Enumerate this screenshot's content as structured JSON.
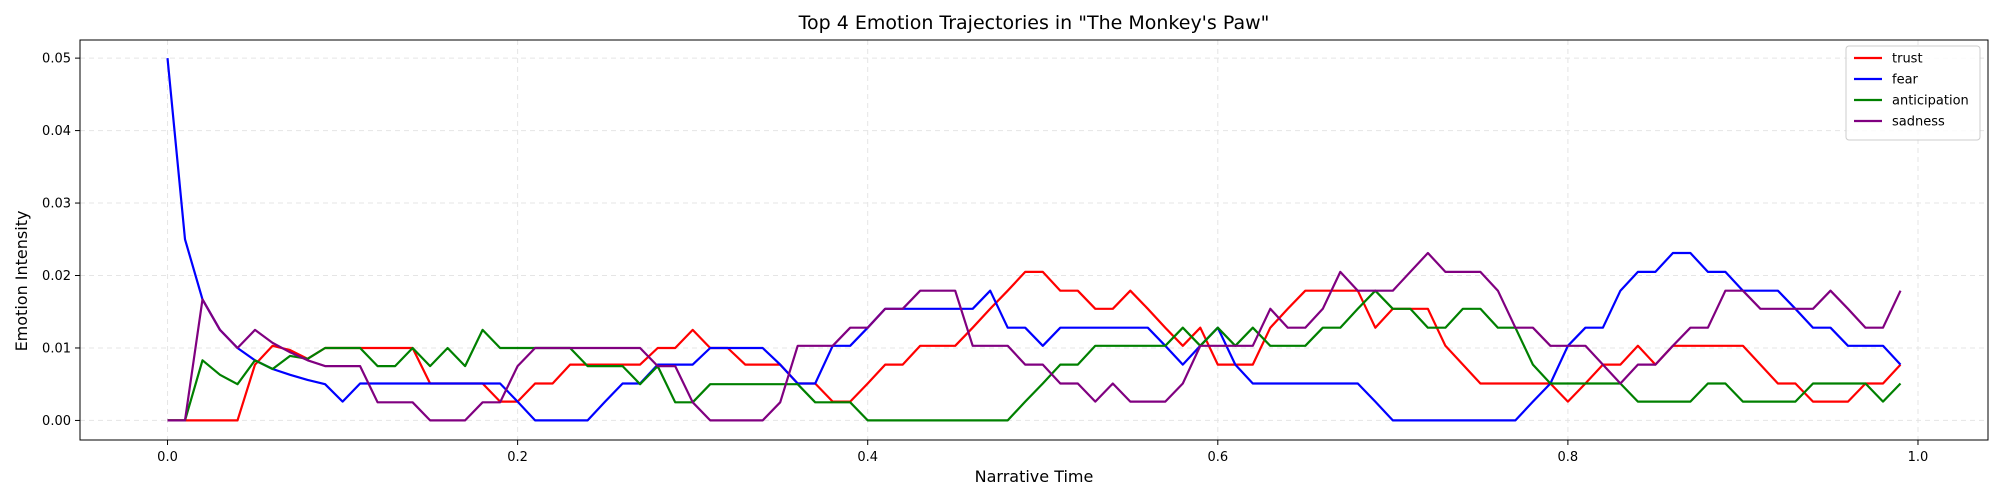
{
  "chart_data": {
    "type": "line",
    "title": "Top 4 Emotion Trajectories in \"The Monkey's Paw\"",
    "xlabel": "Narrative Time",
    "ylabel": "Emotion Intensity",
    "xlim": [
      -0.05,
      1.04
    ],
    "ylim": [
      -0.0027,
      0.0525
    ],
    "xticks": [
      0.0,
      0.2,
      0.4,
      0.6,
      0.8,
      1.0
    ],
    "xtick_labels": [
      "0.0",
      "0.2",
      "0.4",
      "0.6",
      "0.8",
      "1.0"
    ],
    "yticks": [
      0.0,
      0.01,
      0.02,
      0.03,
      0.04,
      0.05
    ],
    "ytick_labels": [
      "0.00",
      "0.01",
      "0.02",
      "0.03",
      "0.04",
      "0.05"
    ],
    "grid": true,
    "legend_position": "top-right",
    "x": [
      0.0,
      0.01,
      0.02,
      0.03,
      0.04,
      0.05,
      0.06,
      0.07,
      0.08,
      0.09,
      0.1,
      0.11,
      0.12,
      0.13,
      0.14,
      0.15,
      0.16,
      0.17,
      0.18,
      0.19,
      0.2,
      0.21,
      0.22,
      0.23,
      0.24,
      0.25,
      0.26,
      0.27,
      0.28,
      0.29,
      0.3,
      0.31,
      0.32,
      0.33,
      0.34,
      0.35,
      0.36,
      0.37,
      0.38,
      0.39,
      0.4,
      0.41,
      0.42,
      0.43,
      0.44,
      0.45,
      0.46,
      0.47,
      0.48,
      0.49,
      0.5,
      0.51,
      0.52,
      0.53,
      0.54,
      0.55,
      0.56,
      0.57,
      0.58,
      0.59,
      0.6,
      0.61,
      0.62,
      0.63,
      0.64,
      0.65,
      0.66,
      0.67,
      0.68,
      0.69,
      0.7,
      0.71,
      0.72,
      0.73,
      0.74,
      0.75,
      0.76,
      0.77,
      0.78,
      0.79,
      0.8,
      0.81,
      0.82,
      0.83,
      0.84,
      0.85,
      0.86,
      0.87,
      0.88,
      0.89,
      0.9,
      0.91,
      0.92,
      0.93,
      0.94,
      0.95,
      0.96,
      0.97,
      0.98,
      0.99
    ],
    "series": [
      {
        "name": "trust",
        "color": "#ff0000",
        "values": [
          0,
          0,
          0,
          0,
          0,
          0.0077,
          0.0103,
          0.0097,
          0.0085,
          0.01,
          0.01,
          0.01,
          0.01,
          0.01,
          0.01,
          0.0051,
          0.0051,
          0.0051,
          0.0051,
          0.0026,
          0.0026,
          0.0051,
          0.0051,
          0.0077,
          0.0077,
          0.0077,
          0.0077,
          0.0077,
          0.01,
          0.01,
          0.0125,
          0.01,
          0.01,
          0.0077,
          0.0077,
          0.0077,
          0.0051,
          0.0051,
          0.0026,
          0.0026,
          0.0051,
          0.0077,
          0.0077,
          0.0103,
          0.0103,
          0.0103,
          0.0128,
          0.0154,
          0.0179,
          0.0205,
          0.0205,
          0.0179,
          0.0179,
          0.0154,
          0.0154,
          0.0179,
          0.0154,
          0.0128,
          0.0103,
          0.0128,
          0.0077,
          0.0077,
          0.0077,
          0.0128,
          0.0154,
          0.0179,
          0.0179,
          0.0179,
          0.0179,
          0.0128,
          0.0154,
          0.0154,
          0.0154,
          0.0103,
          0.0077,
          0.0051,
          0.0051,
          0.0051,
          0.0051,
          0.0051,
          0.0026,
          0.0051,
          0.0077,
          0.0077,
          0.0103,
          0.0077,
          0.0103,
          0.0103,
          0.0103,
          0.0103,
          0.0103,
          0.0077,
          0.0051,
          0.0051,
          0.0026,
          0.0026,
          0.0026,
          0.0051,
          0.0051,
          0.0077
        ]
      },
      {
        "name": "fear",
        "color": "#0000ff",
        "values": [
          0.05,
          0.025,
          0.0167,
          0.0125,
          0.01,
          0.0083,
          0.0071,
          0.0063,
          0.0056,
          0.005,
          0.0026,
          0.0051,
          0.0051,
          0.0051,
          0.0051,
          0.0051,
          0.0051,
          0.0051,
          0.0051,
          0.0051,
          0.0026,
          0,
          0,
          0,
          0,
          0.0026,
          0.0051,
          0.0051,
          0.0077,
          0.0077,
          0.0077,
          0.01,
          0.01,
          0.01,
          0.01,
          0.0077,
          0.0051,
          0.0051,
          0.0103,
          0.0103,
          0.0128,
          0.0154,
          0.0154,
          0.0154,
          0.0154,
          0.0154,
          0.0154,
          0.0179,
          0.0128,
          0.0128,
          0.0103,
          0.0128,
          0.0128,
          0.0128,
          0.0128,
          0.0128,
          0.0128,
          0.0103,
          0.0077,
          0.0103,
          0.0128,
          0.0077,
          0.0051,
          0.0051,
          0.0051,
          0.0051,
          0.0051,
          0.0051,
          0.0051,
          0.0026,
          0,
          0,
          0,
          0,
          0,
          0,
          0,
          0,
          0.0026,
          0.0051,
          0.0103,
          0.0128,
          0.0128,
          0.0179,
          0.0205,
          0.0205,
          0.0231,
          0.0231,
          0.0205,
          0.0205,
          0.0179,
          0.0179,
          0.0179,
          0.0154,
          0.0128,
          0.0128,
          0.0103,
          0.0103,
          0.0103,
          0.0077
        ]
      },
      {
        "name": "anticipation",
        "color": "#008000",
        "values": [
          0,
          0,
          0.0083,
          0.0063,
          0.005,
          0.0083,
          0.0071,
          0.0089,
          0.0085,
          0.01,
          0.01,
          0.01,
          0.0075,
          0.0075,
          0.01,
          0.0075,
          0.01,
          0.0075,
          0.0125,
          0.01,
          0.01,
          0.01,
          0.01,
          0.01,
          0.0075,
          0.0075,
          0.0075,
          0.005,
          0.0075,
          0.0025,
          0.0025,
          0.005,
          0.005,
          0.005,
          0.005,
          0.005,
          0.005,
          0.0025,
          0.0025,
          0.0025,
          0,
          0,
          0,
          0,
          0,
          0,
          0,
          0,
          0,
          0.0026,
          0.0051,
          0.0077,
          0.0077,
          0.0103,
          0.0103,
          0.0103,
          0.0103,
          0.0103,
          0.0128,
          0.0103,
          0.0128,
          0.0103,
          0.0128,
          0.0103,
          0.0103,
          0.0103,
          0.0128,
          0.0128,
          0.0154,
          0.0179,
          0.0154,
          0.0154,
          0.0128,
          0.0128,
          0.0154,
          0.0154,
          0.0128,
          0.0128,
          0.0077,
          0.0051,
          0.0051,
          0.0051,
          0.0051,
          0.0051,
          0.0026,
          0.0026,
          0.0026,
          0.0026,
          0.0051,
          0.0051,
          0.0026,
          0.0026,
          0.0026,
          0.0026,
          0.0051,
          0.0051,
          0.0051,
          0.0051,
          0.0026,
          0.0051
        ]
      },
      {
        "name": "sadness",
        "color": "#800080",
        "values": [
          0,
          0,
          0.0167,
          0.0125,
          0.01,
          0.0125,
          0.0107,
          0.0094,
          0.0083,
          0.0075,
          0.0075,
          0.0075,
          0.0025,
          0.0025,
          0.0025,
          0,
          0,
          0,
          0.0025,
          0.0025,
          0.0075,
          0.01,
          0.01,
          0.01,
          0.01,
          0.01,
          0.01,
          0.01,
          0.0075,
          0.0075,
          0.0025,
          0,
          0,
          0,
          0,
          0.0025,
          0.0103,
          0.0103,
          0.0103,
          0.0128,
          0.0128,
          0.0154,
          0.0154,
          0.0179,
          0.0179,
          0.0179,
          0.0103,
          0.0103,
          0.0103,
          0.0077,
          0.0077,
          0.0051,
          0.0051,
          0.0026,
          0.0051,
          0.0026,
          0.0026,
          0.0026,
          0.0051,
          0.0103,
          0.0103,
          0.0103,
          0.0103,
          0.0154,
          0.0128,
          0.0128,
          0.0154,
          0.0205,
          0.0179,
          0.0179,
          0.0179,
          0.0205,
          0.0231,
          0.0205,
          0.0205,
          0.0205,
          0.0179,
          0.0128,
          0.0128,
          0.0103,
          0.0103,
          0.0103,
          0.0077,
          0.0051,
          0.0077,
          0.0077,
          0.0103,
          0.0128,
          0.0128,
          0.0179,
          0.0179,
          0.0154,
          0.0154,
          0.0154,
          0.0154,
          0.0179,
          0.0154,
          0.0128,
          0.0128,
          0.0179
        ]
      }
    ]
  }
}
